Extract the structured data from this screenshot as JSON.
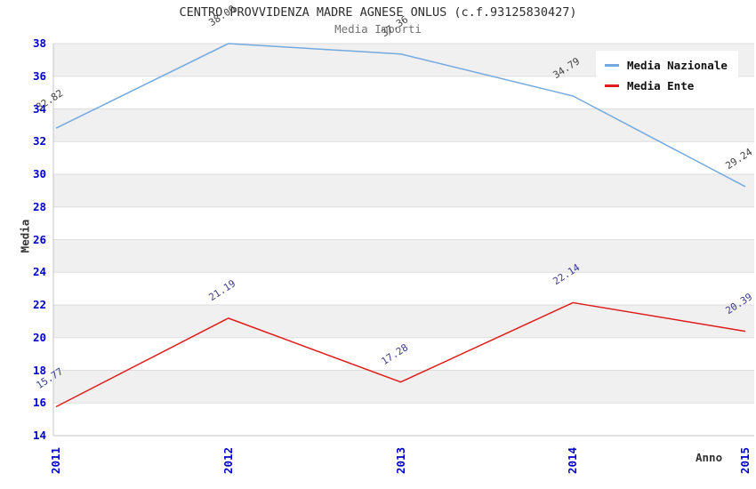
{
  "chart_data": {
    "type": "line",
    "title": "CENTRO PROVVIDENZA MADRE AGNESE ONLUS (c.f.93125830427)",
    "subtitle": "Media Importi",
    "xlabel": "Anno",
    "ylabel": "Media",
    "x": [
      "2011",
      "2012",
      "2013",
      "2014",
      "2015"
    ],
    "series": [
      {
        "name": "Media Nazionale",
        "color": "#74a9e0",
        "label_color": "#3f3f3f",
        "values": [
          32.82,
          38.0,
          37.36,
          34.79,
          29.24
        ]
      },
      {
        "name": "Media Ente",
        "color": "#e01b1b",
        "label_color": "#3a3a8f",
        "values": [
          15.77,
          21.19,
          17.28,
          22.14,
          20.39
        ]
      }
    ],
    "ylim": [
      14,
      38
    ],
    "ytick_step": 2,
    "tick_label_color": "#0000cc",
    "band_colors": [
      "#f0f0f0",
      "#ffffff"
    ],
    "grid": true,
    "legend_position": "top-right",
    "value_labels": true
  }
}
